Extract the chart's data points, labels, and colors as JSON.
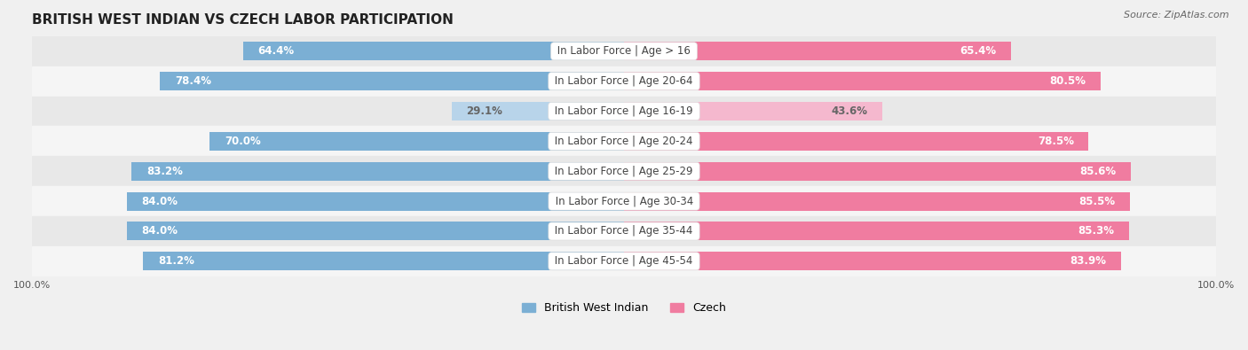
{
  "title": "BRITISH WEST INDIAN VS CZECH LABOR PARTICIPATION",
  "source": "Source: ZipAtlas.com",
  "categories": [
    "In Labor Force | Age > 16",
    "In Labor Force | Age 20-64",
    "In Labor Force | Age 16-19",
    "In Labor Force | Age 20-24",
    "In Labor Force | Age 25-29",
    "In Labor Force | Age 30-34",
    "In Labor Force | Age 35-44",
    "In Labor Force | Age 45-54"
  ],
  "british_values": [
    64.4,
    78.4,
    29.1,
    70.0,
    83.2,
    84.0,
    84.0,
    81.2
  ],
  "czech_values": [
    65.4,
    80.5,
    43.6,
    78.5,
    85.6,
    85.5,
    85.3,
    83.9
  ],
  "light_rows": [
    2
  ],
  "british_color": "#7bafd4",
  "british_color_light": "#b8d4ea",
  "czech_color": "#f07ca0",
  "czech_color_light": "#f5b8ce",
  "background_color": "#f0f0f0",
  "row_color_even": "#e8e8e8",
  "row_color_odd": "#f5f5f5",
  "title_fontsize": 11,
  "label_fontsize": 8.5,
  "value_fontsize": 8.5,
  "tick_fontsize": 8,
  "legend_fontsize": 9,
  "x_min": -100,
  "x_max": 100,
  "bar_height": 0.62
}
